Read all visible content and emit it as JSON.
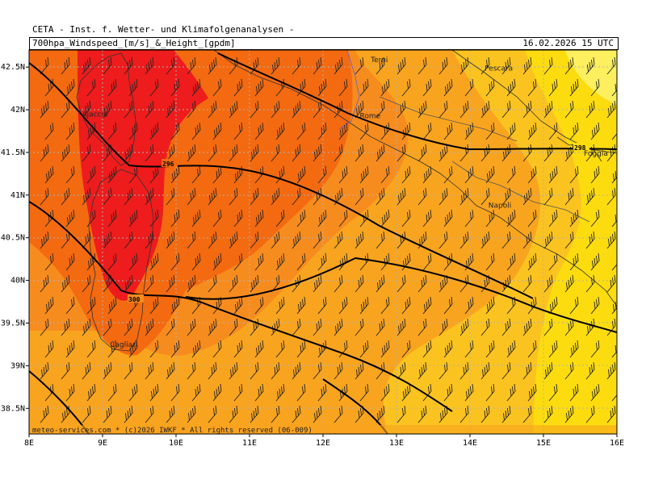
{
  "header": {
    "title": "CETA - Inst. f. Wetter- und Klimafolgenanalysen -",
    "product": "700hpa_Windspeed_[m/s]_&_Height_[gpdm]",
    "valid_time": "16.02.2026 15 UTC"
  },
  "map": {
    "lon_range": [
      8,
      16
    ],
    "lat_range": [
      38.2,
      42.7
    ],
    "x_ticks": [
      "8E",
      "9E",
      "10E",
      "11E",
      "12E",
      "13E",
      "14E",
      "15E",
      "16E"
    ],
    "y_ticks": [
      "42.5N",
      "42N",
      "41.5N",
      "41N",
      "40.5N",
      "40N",
      "39.5N",
      "39N",
      "38.5N"
    ],
    "x_tick_values": [
      8,
      9,
      10,
      11,
      12,
      13,
      14,
      15,
      16
    ],
    "y_tick_values": [
      42.5,
      42,
      41.5,
      41,
      40.5,
      40,
      39.5,
      39,
      38.5
    ],
    "gridlines": "dotted",
    "colors": {
      "very_strong": "#ee1c1c",
      "strong": "#f46a10",
      "moderate_high": "#f78c1e",
      "moderate": "#f9a41e",
      "weak": "#fbc31f",
      "weakest": "#fcdc0e",
      "calm": "#fdef5e",
      "contour": "#000000",
      "coast": "#333333",
      "grid": "#b0b0b0"
    },
    "cities": [
      {
        "name": "Terni",
        "lon": 12.65,
        "lat": 42.56
      },
      {
        "name": "Pescara",
        "lon": 14.2,
        "lat": 42.46
      },
      {
        "name": "Ajaccio",
        "lon": 8.72,
        "lat": 41.92
      },
      {
        "name": "Rome",
        "lon": 12.5,
        "lat": 41.9
      },
      {
        "name": "Foggia",
        "lon": 15.55,
        "lat": 41.46
      },
      {
        "name": "Napoli",
        "lon": 14.25,
        "lat": 40.85
      },
      {
        "name": "Cagliari",
        "lon": 9.1,
        "lat": 39.22
      }
    ],
    "contour_labels": [
      "296",
      "298",
      "300"
    ],
    "copyright": "meteo-services.com * (c)2026 IWKF * All rights reserved (06-009)"
  }
}
